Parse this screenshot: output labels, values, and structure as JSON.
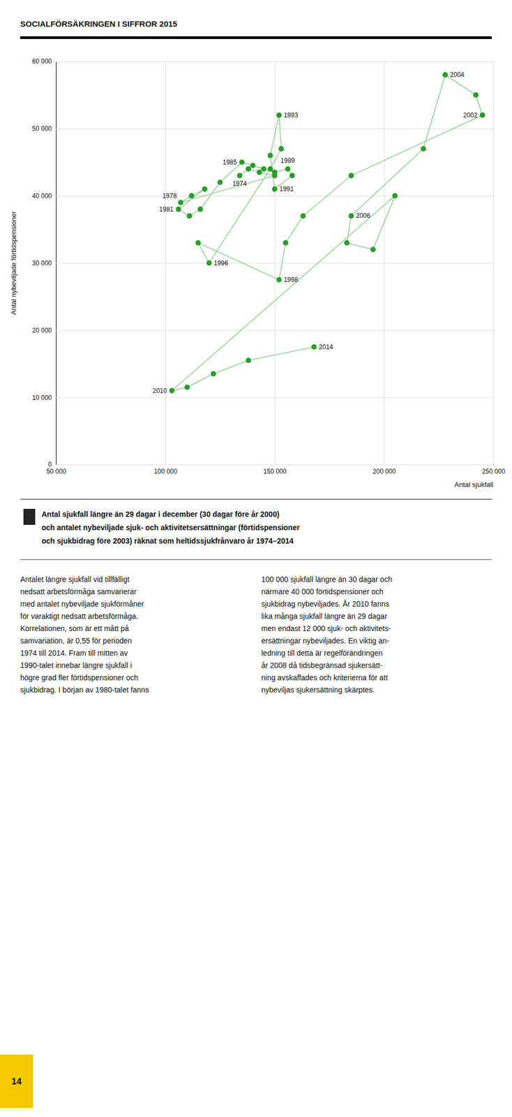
{
  "chart_data": {
    "type": "scatter",
    "title": "SOCIALFÖRSÄKRINGEN I SIFFROR 2015",
    "subtitle": [
      "Antal sjukfall längre än 29 dagar i december (30 dagar före år 2000)",
      "och antalet nybeviljade sjuk- och aktivitetsersättningar (förtidspensioner",
      "och sjukbidrag före 2003) räknat som heltidssjukfrånvaro år 1974–2014"
    ],
    "xlabel": "Antal sjukfall",
    "ylabel": "Antal nybeviljade förtidspensioner",
    "x": [
      134000,
      138000,
      143000,
      150000,
      107000,
      112000,
      118000,
      106000,
      111000,
      116000,
      125000,
      135000,
      140000,
      145000,
      150000,
      156000,
      158000,
      150000,
      148000,
      152000,
      153000,
      148000,
      120000,
      115000,
      152000,
      155000,
      163000,
      185000,
      245000,
      242000,
      228000,
      218000,
      185000,
      183000,
      195000,
      205000,
      103000,
      110000,
      122000,
      138000,
      168000
    ],
    "values": [
      43000,
      44000,
      43500,
      43000,
      39000,
      40000,
      41000,
      38000,
      37000,
      38000,
      42000,
      45000,
      44500,
      44000,
      43500,
      44000,
      43000,
      41000,
      46000,
      52000,
      47000,
      44000,
      30000,
      33000,
      27500,
      33000,
      37000,
      43000,
      52000,
      55000,
      58000,
      47000,
      37000,
      33000,
      32000,
      40000,
      11000,
      11500,
      13500,
      15500,
      17500
    ],
    "point_labels": [
      "1974",
      null,
      null,
      null,
      "1978",
      null,
      null,
      "1981",
      null,
      null,
      null,
      "1985",
      null,
      null,
      null,
      "1989",
      null,
      "1991",
      null,
      "1993",
      null,
      null,
      "1996",
      null,
      "1998",
      null,
      null,
      null,
      "2002",
      null,
      "2004",
      null,
      "2006",
      null,
      null,
      null,
      "2010",
      null,
      null,
      null,
      "2014"
    ],
    "color": "#2a9d2a",
    "marker": "circle",
    "line_style": "solid",
    "xlim": [
      50000,
      250000
    ],
    "ylim": [
      0,
      60000
    ],
    "xticks": [
      {
        "value": 50000,
        "label": "50 000"
      },
      {
        "value": 100000,
        "label": "100 000"
      },
      {
        "value": 150000,
        "label": "150 000"
      },
      {
        "value": 200000,
        "label": "200 000"
      },
      {
        "value": 250000,
        "label": "250 000"
      }
    ],
    "yticks": [
      0,
      {
        "value": 10000,
        "label": "10 000"
      },
      {
        "value": 20000,
        "label": "20 000"
      },
      {
        "value": 30000,
        "label": "30 000"
      },
      {
        "value": 40000,
        "label": "40 000"
      },
      {
        "value": 50000,
        "label": "50 000"
      },
      {
        "value": 60000,
        "label": "60 000"
      }
    ],
    "grid": true,
    "text_columns": [
      [
        "Antalet längre sjukfall vid tillfälligt",
        "nedsatt arbetsförmåga samvarierar",
        "med antalet nybeviljade sjukförmåner",
        "för varaktigt nedsatt arbetsförmåga.",
        "Korrelationen, som är ett mått på",
        "samvariation, är 0,55 för perioden",
        "1974 till 2014. Fram till mitten av",
        "1990-talet innebar längre sjukfall i",
        "högre grad fler förtidspensioner och",
        "sjukbidrag. I början av 1980-talet fanns"
      ],
      [
        "100 000 sjukfall längre än 30 dagar och",
        "närmare 40 000 förtidspensioner och",
        "sjukbidrag nybeviljades. År 2010 fanns",
        "lika många sjukfall längre än 29 dagar",
        "men endast 12 000 sjuk- och aktivitets-",
        "ersättningar nybeviljades. En viktig an-",
        "ledning till detta är regelförändringen",
        "år 2008 då tidsbegränsad sjukersätt-",
        "ning avskaffades och kriterierna för att",
        "nybeviljas sjukersättning skärptes."
      ]
    ],
    "page_number": "14"
  }
}
